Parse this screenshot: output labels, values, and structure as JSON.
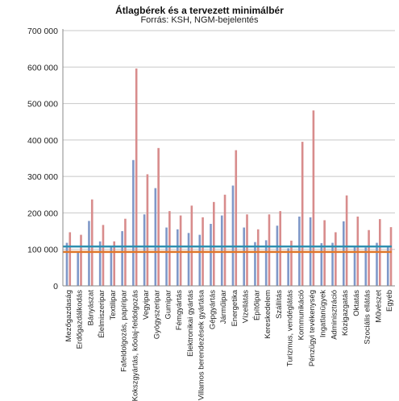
{
  "chart_data": {
    "type": "bar",
    "title": "Átlagbérek és a tervezett minimálbér",
    "subtitle": "Forrás: KSH, NGM-bejelentés",
    "xlabel": "",
    "ylabel": "",
    "ylim": [
      0,
      700000
    ],
    "yticks": [
      "0",
      "100 000",
      "200 000",
      "300 000",
      "400 000",
      "500 000",
      "600 000",
      "700 000"
    ],
    "ytick_values": [
      0,
      100000,
      200000,
      300000,
      400000,
      500000,
      600000,
      700000
    ],
    "grid": true,
    "categories": [
      "Mezőgazdaság",
      "Erdőgazdálkodás",
      "Bányászat",
      "Élelmiszeripar",
      "Textilipar",
      "Fafeldolgozás, papíripar",
      "Kokszgyártás, kőolaj-feldolgozás",
      "Vegyipar",
      "Gyógyszeripar",
      "Gumipar",
      "Fémgyártás",
      "Elektronikai gyártás",
      "Villamos berendezések gyártása",
      "Gépgyártás",
      "Járműipar",
      "Energetika",
      "Vízellátás",
      "Építőipar",
      "Kereskedelem",
      "Szállítás",
      "Turizmus, vendéglátás",
      "Kommunikáció",
      "Pénzügyi tevékenység",
      "Ingatlanügyek",
      "Adminisztráció",
      "Közigazgatás",
      "Oktatás",
      "Szociális ellátás",
      "Művészet",
      "Egyéb"
    ],
    "series": [
      {
        "color": "#7f98c8",
        "values": [
          118000,
          95000,
          178000,
          122000,
          107000,
          150000,
          345000,
          196000,
          268000,
          160000,
          155000,
          145000,
          140000,
          170000,
          193000,
          275000,
          160000,
          120000,
          125000,
          165000,
          103000,
          190000,
          188000,
          117000,
          118000,
          177000,
          108000,
          105000,
          118000,
          108000
        ]
      },
      {
        "color": "#d88c8c",
        "values": [
          147000,
          140000,
          237000,
          167000,
          122000,
          184000,
          596000,
          306000,
          378000,
          205000,
          193000,
          220000,
          188000,
          230000,
          250000,
          372000,
          196000,
          155000,
          196000,
          205000,
          124000,
          395000,
          481000,
          180000,
          147000,
          248000,
          190000,
          153000,
          183000,
          161000
        ]
      }
    ],
    "reference_lines": [
      {
        "value": 108000,
        "color": "#2e8fb0"
      },
      {
        "value": 93000,
        "color": "#e0782a"
      }
    ]
  }
}
